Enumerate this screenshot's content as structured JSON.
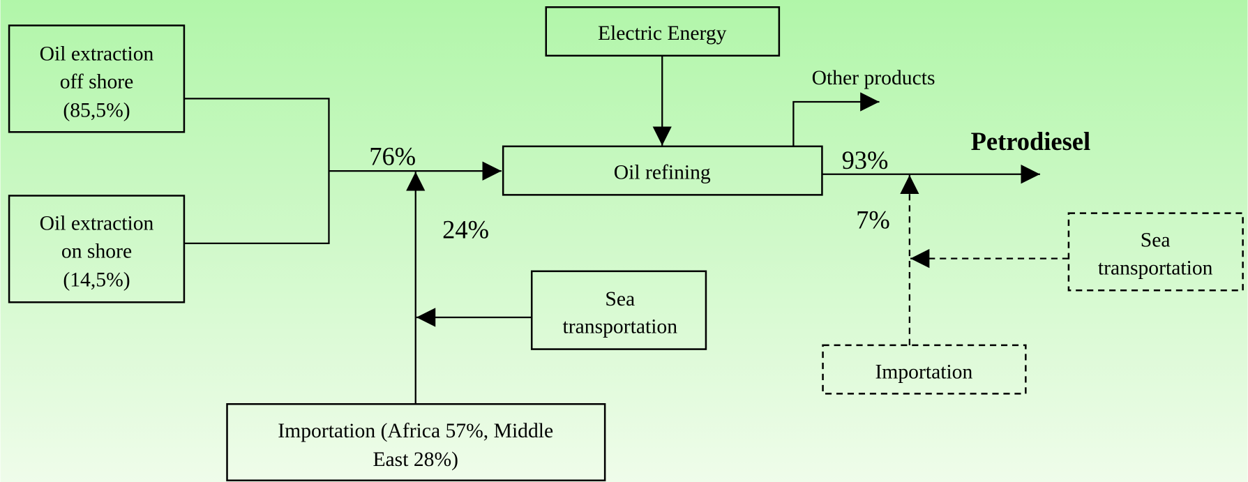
{
  "nodes": [
    {
      "lines": [
        "Oil extraction",
        "off shore",
        "(85,5%)"
      ]
    },
    {
      "lines": [
        "Oil extraction",
        "on shore",
        "(14,5%)"
      ]
    },
    {
      "lines": [
        "Electric Energy"
      ]
    },
    {
      "lines": [
        "Oil refining"
      ]
    },
    {
      "lines": [
        "Sea",
        "transportation"
      ]
    },
    {
      "lines": [
        "Importation  (Africa 57%, Middle",
        "East 28%)"
      ]
    },
    {
      "lines": [
        "Sea",
        "transportation"
      ]
    },
    {
      "lines": [
        "Importation"
      ]
    }
  ],
  "labels": {
    "crude_share": "76%",
    "import_share": "24%",
    "diesel_share": "93%",
    "diesel_import_share": "7%",
    "other_products": "Other products",
    "output": "Petrodiesel"
  }
}
